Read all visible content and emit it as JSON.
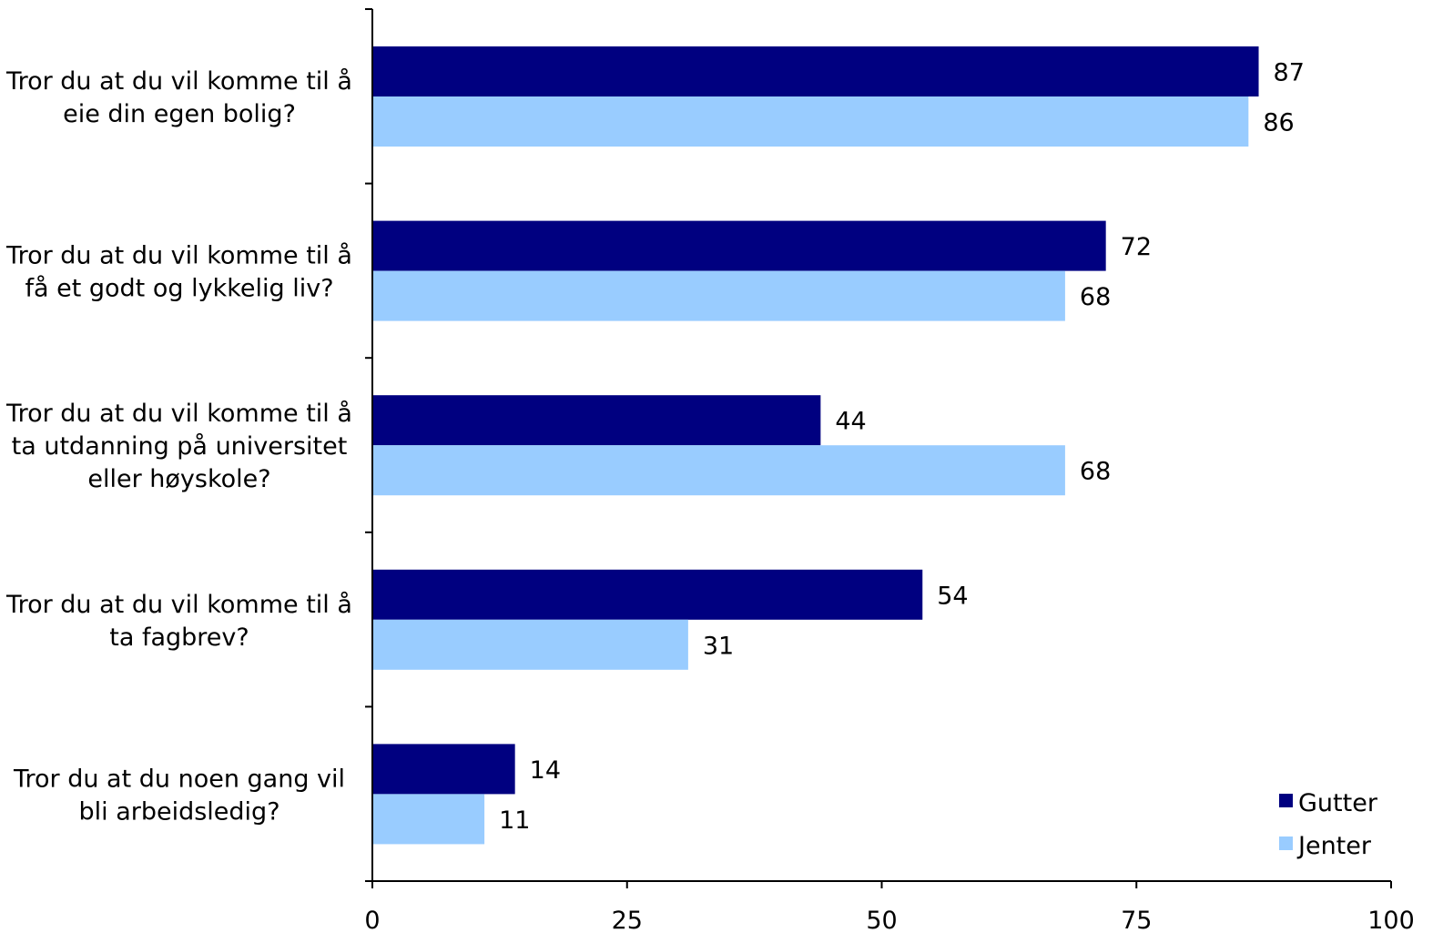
{
  "chart_data": {
    "type": "bar",
    "orientation": "horizontal",
    "categories": [
      [
        "Tror du at du vil komme til å",
        "eie din egen bolig?"
      ],
      [
        "Tror du at du vil komme til å",
        "få et godt og lykkelig liv?"
      ],
      [
        "Tror du at du vil komme til å",
        "ta utdanning på universitet",
        "eller høyskole?"
      ],
      [
        "Tror du at du vil komme til å",
        "ta fagbrev?"
      ],
      [
        "Tror du at du noen gang vil",
        "bli arbeidsledig?"
      ]
    ],
    "series": [
      {
        "name": "Gutter",
        "color": "#000080",
        "values": [
          87,
          72,
          44,
          54,
          14
        ]
      },
      {
        "name": "Jenter",
        "color": "#99CCFF",
        "values": [
          86,
          68,
          68,
          31,
          11
        ]
      }
    ],
    "xlim": [
      0,
      100
    ],
    "xticks": [
      0,
      25,
      50,
      75,
      100
    ],
    "title": "",
    "xlabel": "",
    "ylabel": "",
    "grid": false,
    "legend_position": "bottom-right"
  }
}
